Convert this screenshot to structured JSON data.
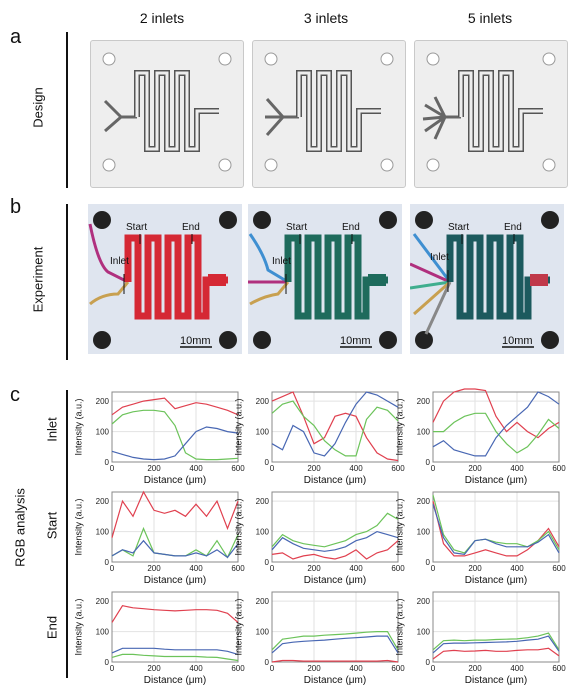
{
  "columns": [
    "2 inlets",
    "3 inlets",
    "5 inlets"
  ],
  "panels": {
    "a": {
      "letter": "a",
      "row_label": "Design"
    },
    "b": {
      "letter": "b",
      "row_label": "Experiment",
      "labels": {
        "inlet": "Inlet",
        "start": "Start",
        "end": "End",
        "scale": "10mm"
      }
    },
    "c": {
      "letter": "c",
      "row_label": "RGB analysis",
      "rows": [
        "Inlet",
        "Start",
        "End"
      ],
      "ylabel": "Intensity (a.u.)",
      "xlabel": "Distance (μm)"
    }
  },
  "colors": {
    "red": "#e0404f",
    "green": "#6cc35a",
    "blue": "#4867b3",
    "grid": "#e2e2e2"
  },
  "chart_data": [
    {
      "type": "line",
      "row": "Inlet",
      "column": "2 inlets",
      "x": [
        0,
        50,
        100,
        150,
        200,
        250,
        300,
        350,
        400,
        450,
        500,
        550,
        600
      ],
      "xlim": [
        0,
        600
      ],
      "ylim": [
        0,
        230
      ],
      "yticks": [
        0,
        100,
        200
      ],
      "xticks": [
        0,
        200,
        400,
        600
      ],
      "series": [
        {
          "color": "red",
          "values": [
            155,
            180,
            190,
            200,
            205,
            210,
            175,
            185,
            195,
            190,
            180,
            170,
            155
          ]
        },
        {
          "color": "green",
          "values": [
            125,
            155,
            165,
            170,
            170,
            165,
            120,
            30,
            10,
            8,
            8,
            10,
            12
          ]
        },
        {
          "color": "blue",
          "values": [
            35,
            25,
            15,
            10,
            8,
            10,
            20,
            60,
            100,
            115,
            110,
            100,
            95
          ]
        }
      ]
    },
    {
      "type": "line",
      "row": "Inlet",
      "column": "3 inlets",
      "x": [
        0,
        50,
        100,
        150,
        200,
        250,
        300,
        350,
        400,
        450,
        500,
        550,
        600
      ],
      "xlim": [
        0,
        600
      ],
      "ylim": [
        0,
        230
      ],
      "yticks": [
        0,
        100,
        200
      ],
      "xticks": [
        0,
        200,
        400,
        600
      ],
      "series": [
        {
          "color": "red",
          "values": [
            200,
            215,
            230,
            150,
            60,
            80,
            150,
            160,
            150,
            80,
            30,
            10,
            5
          ]
        },
        {
          "color": "green",
          "values": [
            160,
            190,
            200,
            150,
            120,
            70,
            40,
            20,
            20,
            140,
            180,
            170,
            135
          ]
        },
        {
          "color": "blue",
          "values": [
            60,
            40,
            120,
            100,
            30,
            20,
            60,
            130,
            190,
            230,
            220,
            200,
            180
          ]
        }
      ]
    },
    {
      "type": "line",
      "row": "Inlet",
      "column": "5 inlets",
      "x": [
        0,
        50,
        100,
        150,
        200,
        250,
        300,
        350,
        400,
        450,
        500,
        550,
        600
      ],
      "xlim": [
        0,
        600
      ],
      "ylim": [
        0,
        230
      ],
      "yticks": [
        0,
        100,
        200
      ],
      "xticks": [
        0,
        200,
        400,
        600
      ],
      "series": [
        {
          "color": "red",
          "values": [
            130,
            200,
            230,
            240,
            240,
            235,
            150,
            100,
            130,
            100,
            80,
            110,
            130
          ]
        },
        {
          "color": "green",
          "values": [
            100,
            100,
            130,
            150,
            160,
            160,
            100,
            60,
            30,
            50,
            90,
            140,
            110
          ]
        },
        {
          "color": "blue",
          "values": [
            50,
            70,
            40,
            30,
            20,
            20,
            80,
            120,
            150,
            180,
            230,
            215,
            190
          ]
        }
      ]
    },
    {
      "type": "line",
      "row": "Start",
      "column": "2 inlets",
      "x": [
        0,
        50,
        100,
        150,
        200,
        250,
        300,
        350,
        400,
        450,
        500,
        550,
        600
      ],
      "xlim": [
        0,
        600
      ],
      "ylim": [
        0,
        230
      ],
      "yticks": [
        0,
        100,
        200
      ],
      "xticks": [
        0,
        200,
        400,
        600
      ],
      "series": [
        {
          "color": "red",
          "values": [
            80,
            200,
            150,
            230,
            170,
            160,
            170,
            150,
            190,
            150,
            200,
            110,
            200
          ]
        },
        {
          "color": "green",
          "values": [
            20,
            40,
            20,
            110,
            30,
            25,
            20,
            20,
            40,
            20,
            70,
            15,
            90
          ]
        },
        {
          "color": "blue",
          "values": [
            20,
            40,
            30,
            70,
            30,
            25,
            20,
            20,
            30,
            20,
            40,
            15,
            60
          ]
        }
      ]
    },
    {
      "type": "line",
      "row": "Start",
      "column": "3 inlets",
      "x": [
        0,
        50,
        100,
        150,
        200,
        250,
        300,
        350,
        400,
        450,
        500,
        550,
        600
      ],
      "xlim": [
        0,
        600
      ],
      "ylim": [
        0,
        230
      ],
      "yticks": [
        0,
        100,
        200
      ],
      "xticks": [
        0,
        200,
        400,
        600
      ],
      "series": [
        {
          "color": "red",
          "values": [
            25,
            30,
            10,
            20,
            25,
            15,
            10,
            20,
            40,
            10,
            30,
            40,
            70
          ]
        },
        {
          "color": "green",
          "values": [
            50,
            90,
            70,
            60,
            55,
            50,
            60,
            70,
            90,
            100,
            120,
            160,
            140
          ]
        },
        {
          "color": "blue",
          "values": [
            40,
            80,
            60,
            45,
            40,
            35,
            40,
            50,
            70,
            80,
            100,
            90,
            80
          ]
        }
      ]
    },
    {
      "type": "line",
      "row": "Start",
      "column": "5 inlets",
      "x": [
        0,
        50,
        100,
        150,
        200,
        250,
        300,
        350,
        400,
        450,
        500,
        550,
        600
      ],
      "xlim": [
        0,
        600
      ],
      "ylim": [
        0,
        230
      ],
      "yticks": [
        0,
        100,
        200
      ],
      "xticks": [
        0,
        200,
        400,
        600
      ],
      "series": [
        {
          "color": "red",
          "values": [
            200,
            60,
            20,
            20,
            30,
            40,
            30,
            20,
            20,
            40,
            70,
            110,
            50
          ]
        },
        {
          "color": "green",
          "values": [
            220,
            90,
            40,
            30,
            70,
            75,
            65,
            60,
            60,
            50,
            70,
            100,
            40
          ]
        },
        {
          "color": "blue",
          "values": [
            190,
            80,
            30,
            25,
            70,
            75,
            60,
            50,
            50,
            50,
            65,
            90,
            30
          ]
        }
      ]
    },
    {
      "type": "line",
      "row": "End",
      "column": "2 inlets",
      "x": [
        0,
        50,
        100,
        150,
        200,
        250,
        300,
        350,
        400,
        450,
        500,
        550,
        600
      ],
      "xlim": [
        0,
        600
      ],
      "ylim": [
        0,
        230
      ],
      "yticks": [
        0,
        100,
        200
      ],
      "xticks": [
        0,
        200,
        400,
        600
      ],
      "series": [
        {
          "color": "red",
          "values": [
            130,
            185,
            178,
            175,
            172,
            170,
            168,
            170,
            172,
            172,
            170,
            160,
            130
          ]
        },
        {
          "color": "green",
          "values": [
            15,
            25,
            25,
            22,
            20,
            18,
            18,
            18,
            18,
            16,
            15,
            10,
            5
          ]
        },
        {
          "color": "blue",
          "values": [
            30,
            45,
            45,
            45,
            45,
            42,
            40,
            40,
            40,
            40,
            40,
            35,
            25
          ]
        }
      ]
    },
    {
      "type": "line",
      "row": "End",
      "column": "3 inlets",
      "x": [
        0,
        50,
        100,
        150,
        200,
        250,
        300,
        350,
        400,
        450,
        500,
        550,
        600
      ],
      "xlim": [
        0,
        600
      ],
      "ylim": [
        0,
        230
      ],
      "yticks": [
        0,
        100,
        200
      ],
      "xticks": [
        0,
        200,
        400,
        600
      ],
      "series": [
        {
          "color": "red",
          "values": [
            0,
            5,
            5,
            3,
            3,
            3,
            3,
            3,
            3,
            3,
            3,
            5,
            0
          ]
        },
        {
          "color": "green",
          "values": [
            40,
            75,
            80,
            85,
            85,
            88,
            90,
            92,
            95,
            98,
            100,
            100,
            40
          ]
        },
        {
          "color": "blue",
          "values": [
            30,
            60,
            65,
            68,
            70,
            72,
            75,
            78,
            80,
            82,
            85,
            85,
            30
          ]
        }
      ]
    },
    {
      "type": "line",
      "row": "End",
      "column": "5 inlets",
      "x": [
        0,
        50,
        100,
        150,
        200,
        250,
        300,
        350,
        400,
        450,
        500,
        550,
        600
      ],
      "xlim": [
        0,
        600
      ],
      "ylim": [
        0,
        230
      ],
      "yticks": [
        0,
        100,
        200
      ],
      "xticks": [
        0,
        200,
        400,
        600
      ],
      "series": [
        {
          "color": "red",
          "values": [
            10,
            35,
            38,
            35,
            36,
            38,
            35,
            35,
            38,
            40,
            40,
            45,
            20
          ]
        },
        {
          "color": "green",
          "values": [
            40,
            70,
            72,
            70,
            72,
            72,
            74,
            75,
            76,
            80,
            85,
            95,
            40
          ]
        },
        {
          "color": "blue",
          "values": [
            30,
            60,
            62,
            62,
            63,
            64,
            65,
            66,
            68,
            72,
            75,
            85,
            35
          ]
        }
      ]
    }
  ]
}
